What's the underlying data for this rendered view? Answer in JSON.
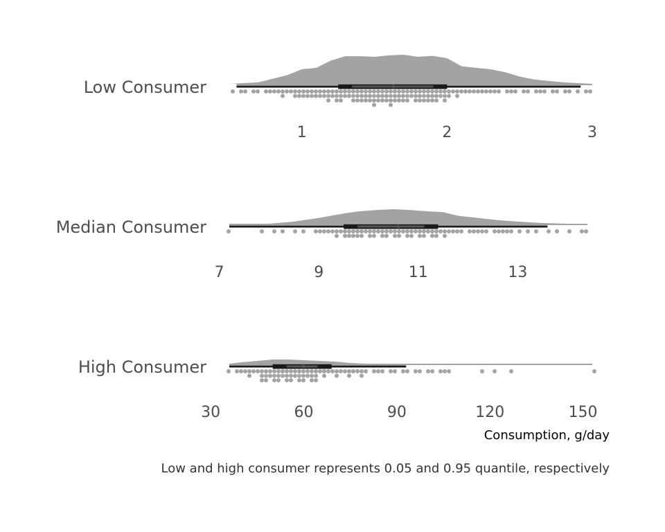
{
  "chart_data": {
    "type": "raincloud",
    "title": "",
    "xlabel": "Consumption, g/day",
    "caption": "Low and high consumer represents 0.05 and 0.95 quantile, respectively",
    "colors": {
      "cloud": "#a3a3a3",
      "rain": "#a3a3a3",
      "interval": "#1a1a1a",
      "interval_inner": "#555555",
      "text": "#4d4d4d"
    },
    "grid": false,
    "panels": [
      {
        "name": "Low Consumer",
        "xlim": [
          0.5,
          3.0
        ],
        "ticks": [
          1,
          2,
          3
        ],
        "tick_labels": [
          "1",
          "2",
          "3"
        ],
        "summary": {
          "min": 0.55,
          "q5": 0.5,
          "q25": 1.25,
          "median": 1.63,
          "q75": 2.0,
          "q95": 2.13,
          "q99": 2.92,
          "max": 3.0
        },
        "density_x": [
          0.5,
          0.7,
          0.9,
          1.0,
          1.1,
          1.2,
          1.3,
          1.4,
          1.5,
          1.6,
          1.7,
          1.8,
          1.9,
          2.0,
          2.1,
          2.2,
          2.3,
          2.4,
          2.5,
          2.6,
          2.8,
          3.0
        ],
        "density_y": [
          0.0,
          0.05,
          0.3,
          0.5,
          0.55,
          0.8,
          0.95,
          0.95,
          0.93,
          0.98,
          1.0,
          0.93,
          0.96,
          0.88,
          0.6,
          0.55,
          0.5,
          0.4,
          0.25,
          0.15,
          0.05,
          0.0
        ],
        "points": [
          0.53,
          0.58,
          0.62,
          0.66,
          0.7,
          0.74,
          0.78,
          0.8,
          0.83,
          0.86,
          0.88,
          0.9,
          0.92,
          0.94,
          0.95,
          0.97,
          0.99,
          1.0,
          1.02,
          1.04,
          1.05,
          1.06,
          1.08,
          1.09,
          1.1,
          1.12,
          1.13,
          1.14,
          1.15,
          1.17,
          1.18,
          1.19,
          1.2,
          1.22,
          1.23,
          1.24,
          1.25,
          1.26,
          1.27,
          1.28,
          1.3,
          1.31,
          1.32,
          1.33,
          1.34,
          1.35,
          1.36,
          1.37,
          1.38,
          1.39,
          1.4,
          1.41,
          1.42,
          1.43,
          1.44,
          1.45,
          1.46,
          1.47,
          1.48,
          1.49,
          1.5,
          1.5,
          1.51,
          1.52,
          1.53,
          1.54,
          1.55,
          1.55,
          1.56,
          1.57,
          1.58,
          1.59,
          1.6,
          1.6,
          1.61,
          1.62,
          1.63,
          1.64,
          1.65,
          1.66,
          1.67,
          1.68,
          1.69,
          1.7,
          1.71,
          1.72,
          1.73,
          1.74,
          1.75,
          1.76,
          1.77,
          1.78,
          1.79,
          1.8,
          1.81,
          1.82,
          1.83,
          1.84,
          1.85,
          1.86,
          1.87,
          1.88,
          1.89,
          1.9,
          1.91,
          1.92,
          1.93,
          1.94,
          1.95,
          1.96,
          1.97,
          1.98,
          1.99,
          2.0,
          2.02,
          2.04,
          2.06,
          2.08,
          2.1,
          2.12,
          2.15,
          2.18,
          2.2,
          2.23,
          2.26,
          2.3,
          2.33,
          2.37,
          2.4,
          2.44,
          2.48,
          2.52,
          2.56,
          2.6,
          2.64,
          2.68,
          2.72,
          2.76,
          2.8,
          2.85,
          2.9,
          2.95,
          2.98
        ]
      },
      {
        "name": "Median Consumer",
        "xlim": [
          7.2,
          14.5
        ],
        "ticks": [
          7,
          9,
          11,
          13
        ],
        "tick_labels": [
          "7",
          "9",
          "11",
          "13"
        ],
        "summary": {
          "min": 7.2,
          "q5": 8.4,
          "q25": 9.5,
          "median": 10.6,
          "q75": 11.4,
          "q95": 11.65,
          "q99": 13.6,
          "max": 14.4
        },
        "density_x": [
          8.0,
          8.5,
          9.0,
          9.5,
          9.8,
          10.2,
          10.5,
          10.8,
          11.2,
          11.5,
          11.8,
          12.2,
          12.6,
          13.0,
          13.5,
          14.0
        ],
        "density_y": [
          0.0,
          0.15,
          0.4,
          0.7,
          0.85,
          0.95,
          1.0,
          0.95,
          0.85,
          0.8,
          0.55,
          0.4,
          0.25,
          0.15,
          0.05,
          0.0
        ],
        "points": [
          7.22,
          7.85,
          8.1,
          8.3,
          8.5,
          8.7,
          8.9,
          9.0,
          9.1,
          9.2,
          9.3,
          9.35,
          9.4,
          9.45,
          9.5,
          9.55,
          9.6,
          9.65,
          9.7,
          9.72,
          9.75,
          9.8,
          9.85,
          9.9,
          9.95,
          10.0,
          10.05,
          10.1,
          10.15,
          10.2,
          10.25,
          10.3,
          10.35,
          10.4,
          10.45,
          10.5,
          10.55,
          10.6,
          10.65,
          10.7,
          10.75,
          10.8,
          10.85,
          10.9,
          10.95,
          11.0,
          11.05,
          11.1,
          11.15,
          11.2,
          11.25,
          11.3,
          11.35,
          11.4,
          11.45,
          11.5,
          11.55,
          11.6,
          11.7,
          11.8,
          11.9,
          12.0,
          12.1,
          12.2,
          12.3,
          12.4,
          12.5,
          12.6,
          12.7,
          12.8,
          12.9,
          13.0,
          13.2,
          13.4,
          13.6,
          13.8,
          14.0,
          14.3,
          14.4
        ]
      },
      {
        "name": "High Consumer",
        "xlim": [
          36,
          153
        ],
        "ticks": [
          30,
          60,
          90,
          120,
          150
        ],
        "tick_labels": [
          "30",
          "60",
          "90",
          "120",
          "150"
        ],
        "summary": {
          "min": 36,
          "q5": 49,
          "q25": 50,
          "median": 60,
          "q75": 69,
          "q95": 73,
          "q99": 93,
          "max": 153
        },
        "density_x": [
          36,
          40,
          45,
          50,
          55,
          60,
          65,
          70,
          75,
          80
        ],
        "density_y": [
          0.0,
          0.02,
          0.04,
          0.06,
          0.06,
          0.05,
          0.04,
          0.03,
          0.01,
          0.0
        ],
        "points": [
          36,
          38,
          40,
          41,
          42,
          43,
          44,
          45,
          46,
          46.5,
          47,
          47.5,
          48,
          48.5,
          49,
          49.5,
          50,
          50.5,
          51,
          51.5,
          52,
          52.5,
          53,
          53.5,
          54,
          54.5,
          55,
          55.5,
          56,
          56.5,
          57,
          57.5,
          58,
          58.5,
          59,
          59.5,
          60,
          60.5,
          61,
          61.5,
          62,
          62.5,
          63,
          63.5,
          64,
          64.5,
          65,
          66,
          67,
          68,
          69,
          70,
          71,
          72,
          73,
          74,
          75,
          76,
          77,
          78,
          79,
          80,
          82,
          84,
          86,
          88,
          90,
          92,
          94,
          96,
          98,
          100,
          102,
          104,
          106,
          107,
          117,
          121,
          127,
          153
        ]
      }
    ]
  }
}
